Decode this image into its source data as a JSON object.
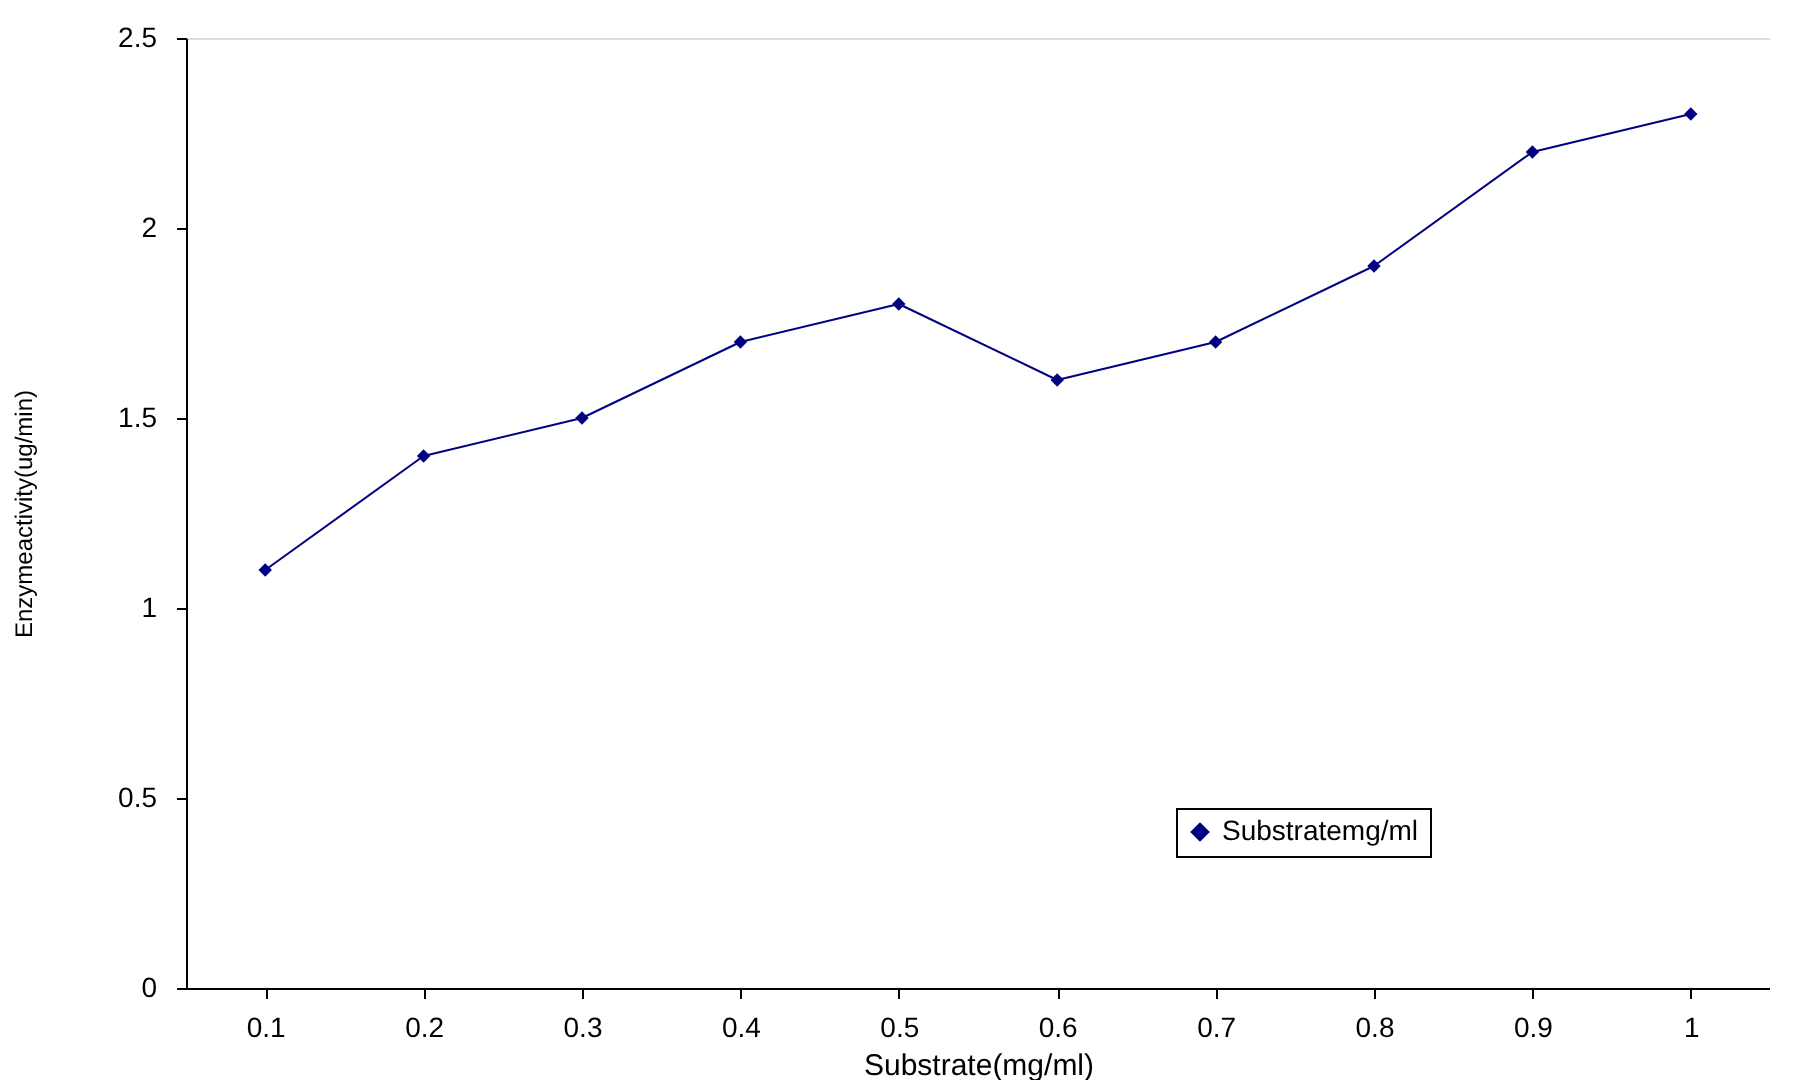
{
  "chart_data": {
    "type": "line",
    "xlabel": "Substrate(mg/ml)",
    "ylabel": "Enzymeactivity(ug/min)",
    "categories": [
      "0.1",
      "0.2",
      "0.3",
      "0.4",
      "0.5",
      "0.6",
      "0.7",
      "0.8",
      "0.9",
      "1"
    ],
    "series": [
      {
        "name": "Substratemg/ml",
        "color": "#000080",
        "values": [
          1.1,
          1.4,
          1.5,
          1.7,
          1.8,
          1.6,
          1.7,
          1.9,
          2.2,
          2.3
        ]
      }
    ],
    "ylim": [
      0,
      2.5
    ],
    "yticks": [
      0,
      0.5,
      1,
      1.5,
      2,
      2.5
    ],
    "grid": false,
    "legend": "bottom right",
    "marker": "diamond",
    "line_style": "solid"
  }
}
